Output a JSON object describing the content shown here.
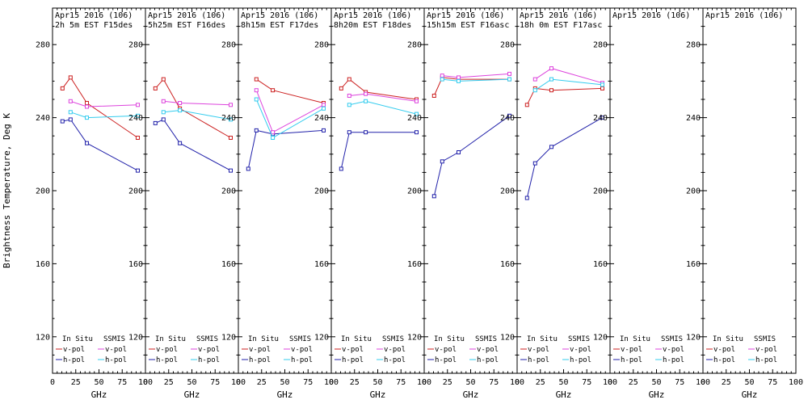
{
  "figure": {
    "ylabel": "Brightness Temperature, Deg K",
    "xlabel": "GHz",
    "x_ticks": [
      0,
      25,
      50,
      75,
      100
    ],
    "y_ticks": [
      120,
      160,
      200,
      240,
      280
    ],
    "xlim": [
      0,
      100
    ],
    "ylim": [
      100,
      300
    ],
    "colors": {
      "insitu_v": "#cc2020",
      "insitu_h": "#2222aa",
      "ssmis_v": "#dd44dd",
      "ssmis_h": "#33ccee",
      "frame": "#000000",
      "background": "#ffffff"
    },
    "legend": {
      "col1": "In Situ",
      "col2": "SSMIS",
      "v_label": "v-pol",
      "h_label": "h-pol"
    }
  },
  "chart_data": [
    {
      "type": "line",
      "title": "Apr15 2016 (106)",
      "subtitle": "2h 5m EST F15des",
      "xlabel": "GHz",
      "xlim": [
        0,
        100
      ],
      "ylim": [
        100,
        300
      ],
      "series": [
        {
          "name": "In Situ v-pol",
          "color": "#cc2020",
          "x": [
            10.7,
            19.35,
            37,
            91.7
          ],
          "y": [
            256,
            262,
            248,
            229
          ]
        },
        {
          "name": "In Situ h-pol",
          "color": "#2222aa",
          "x": [
            10.7,
            19.35,
            37,
            91.7
          ],
          "y": [
            238,
            239,
            226,
            211
          ]
        },
        {
          "name": "SSMIS v-pol",
          "color": "#dd44dd",
          "x": [
            19.35,
            37,
            91.7
          ],
          "y": [
            249,
            246,
            247
          ]
        },
        {
          "name": "SSMIS h-pol",
          "color": "#33ccee",
          "x": [
            19.35,
            37,
            91.7
          ],
          "y": [
            243,
            240,
            241
          ]
        }
      ]
    },
    {
      "type": "line",
      "title": "Apr15 2016 (106)",
      "subtitle": "5h25m EST F16des",
      "xlabel": "GHz",
      "xlim": [
        0,
        100
      ],
      "ylim": [
        100,
        300
      ],
      "series": [
        {
          "name": "In Situ v-pol",
          "color": "#cc2020",
          "x": [
            10.7,
            19.35,
            37,
            91.7
          ],
          "y": [
            256,
            261,
            245,
            229
          ]
        },
        {
          "name": "In Situ h-pol",
          "color": "#2222aa",
          "x": [
            10.7,
            19.35,
            37,
            91.7
          ],
          "y": [
            237,
            239,
            226,
            211
          ]
        },
        {
          "name": "SSMIS v-pol",
          "color": "#dd44dd",
          "x": [
            19.35,
            37,
            91.7
          ],
          "y": [
            249,
            248,
            247
          ]
        },
        {
          "name": "SSMIS h-pol",
          "color": "#33ccee",
          "x": [
            19.35,
            37,
            91.7
          ],
          "y": [
            243,
            244,
            239
          ]
        }
      ]
    },
    {
      "type": "line",
      "title": "Apr15 2016 (106)",
      "subtitle": "8h15m EST F17des",
      "xlabel": "GHz",
      "xlim": [
        0,
        100
      ],
      "ylim": [
        100,
        300
      ],
      "series": [
        {
          "name": "In Situ v-pol",
          "color": "#cc2020",
          "x": [
            19.35,
            37,
            91.7
          ],
          "y": [
            261,
            255,
            248
          ]
        },
        {
          "name": "In Situ h-pol",
          "color": "#2222aa",
          "x": [
            10.7,
            19.35,
            37,
            91.7
          ],
          "y": [
            212,
            233,
            231,
            233
          ]
        },
        {
          "name": "SSMIS v-pol",
          "color": "#dd44dd",
          "x": [
            19.35,
            37,
            91.7
          ],
          "y": [
            255,
            232,
            247
          ]
        },
        {
          "name": "SSMIS h-pol",
          "color": "#33ccee",
          "x": [
            19.35,
            37,
            91.7
          ],
          "y": [
            250,
            229,
            245
          ]
        }
      ]
    },
    {
      "type": "line",
      "title": "Apr15 2016 (106)",
      "subtitle": "8h20m EST F18des",
      "xlabel": "GHz",
      "xlim": [
        0,
        100
      ],
      "ylim": [
        100,
        300
      ],
      "series": [
        {
          "name": "In Situ v-pol",
          "color": "#cc2020",
          "x": [
            10.7,
            19.35,
            37,
            91.7
          ],
          "y": [
            256,
            261,
            254,
            250
          ]
        },
        {
          "name": "In Situ h-pol",
          "color": "#2222aa",
          "x": [
            10.7,
            19.35,
            37,
            91.7
          ],
          "y": [
            212,
            232,
            232,
            232
          ]
        },
        {
          "name": "SSMIS v-pol",
          "color": "#dd44dd",
          "x": [
            19.35,
            37,
            91.7
          ],
          "y": [
            252,
            253,
            249
          ]
        },
        {
          "name": "SSMIS h-pol",
          "color": "#33ccee",
          "x": [
            19.35,
            37,
            91.7
          ],
          "y": [
            247,
            249,
            242
          ]
        }
      ]
    },
    {
      "type": "line",
      "title": "Apr15 2016 (106)",
      "subtitle": "15h15m EST F16asc",
      "xlabel": "GHz",
      "xlim": [
        0,
        100
      ],
      "ylim": [
        100,
        300
      ],
      "series": [
        {
          "name": "In Situ v-pol",
          "color": "#cc2020",
          "x": [
            10.7,
            19.35,
            37,
            91.7
          ],
          "y": [
            252,
            262,
            261,
            261
          ]
        },
        {
          "name": "In Situ h-pol",
          "color": "#2222aa",
          "x": [
            10.7,
            19.35,
            37,
            91.7
          ],
          "y": [
            197,
            216,
            221,
            241
          ]
        },
        {
          "name": "SSMIS v-pol",
          "color": "#dd44dd",
          "x": [
            19.35,
            37,
            91.7
          ],
          "y": [
            263,
            262,
            264
          ]
        },
        {
          "name": "SSMIS h-pol",
          "color": "#33ccee",
          "x": [
            19.35,
            37,
            91.7
          ],
          "y": [
            261,
            260,
            261
          ]
        }
      ]
    },
    {
      "type": "line",
      "title": "Apr15 2016 (106)",
      "subtitle": "18h 0m EST F17asc",
      "xlabel": "GHz",
      "xlim": [
        0,
        100
      ],
      "ylim": [
        100,
        300
      ],
      "series": [
        {
          "name": "In Situ v-pol",
          "color": "#cc2020",
          "x": [
            10.7,
            19.35,
            37,
            91.7
          ],
          "y": [
            247,
            256,
            255,
            256
          ]
        },
        {
          "name": "In Situ h-pol",
          "color": "#2222aa",
          "x": [
            10.7,
            19.35,
            37,
            91.7
          ],
          "y": [
            196,
            215,
            224,
            240
          ]
        },
        {
          "name": "SSMIS v-pol",
          "color": "#dd44dd",
          "x": [
            19.35,
            37,
            91.7
          ],
          "y": [
            261,
            267,
            259
          ]
        },
        {
          "name": "SSMIS h-pol",
          "color": "#33ccee",
          "x": [
            19.35,
            37,
            91.7
          ],
          "y": [
            255,
            261,
            258
          ]
        }
      ]
    },
    {
      "type": "line",
      "title": "Apr15 2016 (106)",
      "subtitle": "",
      "xlabel": "GHz",
      "xlim": [
        0,
        100
      ],
      "ylim": [
        100,
        300
      ],
      "series": []
    },
    {
      "type": "line",
      "title": "Apr15 2016 (106)",
      "subtitle": "",
      "xlabel": "GHz",
      "xlim": [
        0,
        100
      ],
      "ylim": [
        100,
        300
      ],
      "series": []
    }
  ]
}
